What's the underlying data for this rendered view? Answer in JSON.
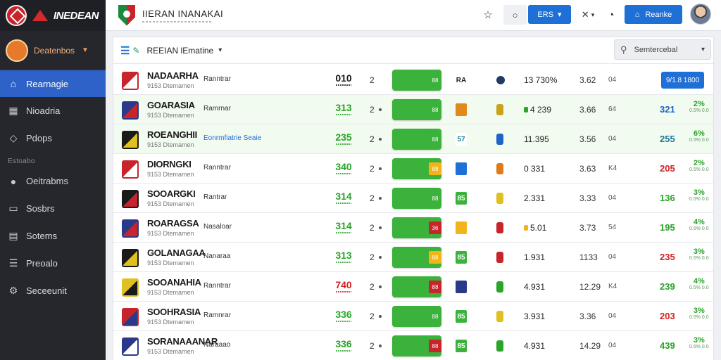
{
  "brand": {
    "name": "INEDEAN"
  },
  "sidebar": {
    "club_select": "Deatenbos",
    "items": [
      {
        "label": "Rearnagie",
        "icon": "home-icon",
        "active": true
      },
      {
        "label": "Nioadria",
        "icon": "building-icon",
        "active": false
      },
      {
        "label": "Pdops",
        "icon": "tag-icon",
        "active": false
      }
    ],
    "section_label": "Estoabo",
    "items2": [
      {
        "label": "Oeitrabms",
        "icon": "circle-icon"
      },
      {
        "label": "Sosbrs",
        "icon": "monitor-icon"
      },
      {
        "label": "Sotems",
        "icon": "calendar-icon"
      },
      {
        "label": "Preoalo",
        "icon": "list-icon"
      },
      {
        "label": "Seceeunit",
        "icon": "gear-icon"
      }
    ]
  },
  "header": {
    "title": "IIERAN INANAKAI",
    "lang_label": "ERS",
    "cta_label": "Reanke"
  },
  "panel": {
    "view_label": "REEIAN lEmatine",
    "filter_placeholder": "Semtercebal"
  },
  "colors": {
    "accent": "#1e6fd6",
    "bar": "#3bb23b",
    "sidebar": "#26272d",
    "active_nav": "#2f62c8"
  },
  "rows": [
    {
      "name": "NADAARHA",
      "sub": "9153 Dtemamen",
      "type": "Ranntrar",
      "type_link": false,
      "pts": "010",
      "pts_color": "dark",
      "rank": "2",
      "rank_dot": false,
      "bar_tag": "88",
      "bar_tag_color": "#3bb23b",
      "form": "RA",
      "form_color": "#ffffff",
      "form_text_color": "#222",
      "ind_color": "#223a66",
      "ind_round": true,
      "val1": "13 730%",
      "val1_dot": "",
      "val2": "3.62",
      "unit": "04",
      "score": "",
      "score_color": "",
      "pct": "",
      "pct_sub": "",
      "button": "9/1.8 1800",
      "crest": [
        "#c8242b",
        "#ffffff"
      ]
    },
    {
      "name": "GOARASIA",
      "sub": "9153 Dtemamen",
      "type": "Ramrnar",
      "type_link": false,
      "pts": "313",
      "pts_color": "green",
      "rank": "2",
      "rank_dot": true,
      "bar_tag": "88",
      "bar_tag_color": "#3bb23b",
      "form": "",
      "form_color": "#e08a1a",
      "form_text_color": "#fff",
      "ind_color": "#c9a21a",
      "ind_round": false,
      "val1": "4 239",
      "val1_dot": "#2aa52a",
      "val2": "3.66",
      "unit": "64",
      "score": "321",
      "score_color": "blue",
      "pct": "2%",
      "pct_sub": "0.5% 0.0",
      "button": "",
      "crest": [
        "#2a3a8a",
        "#c8242b"
      ]
    },
    {
      "name": "ROEANGHII",
      "sub": "9153 Dtemamen",
      "type": "Eonrmfiatrie Seaie",
      "type_link": true,
      "pts": "235",
      "pts_color": "green",
      "rank": "2",
      "rank_dot": true,
      "bar_tag": "88",
      "bar_tag_color": "#3bb23b",
      "form": "57",
      "form_color": "#ffffff",
      "form_text_color": "#1a7a9a",
      "ind_color": "#1e63c8",
      "ind_round": false,
      "val1": "11.395",
      "val1_dot": "",
      "val2": "3.56",
      "unit": "04",
      "score": "255",
      "score_color": "teal",
      "pct": "6%",
      "pct_sub": "0.5% 0.0",
      "button": "",
      "crest": [
        "#1a1a1a",
        "#e0c020"
      ]
    },
    {
      "name": "DIORNGKI",
      "sub": "9153 Dtemamen",
      "type": "Ranntrar",
      "type_link": false,
      "pts": "340",
      "pts_color": "green",
      "rank": "2",
      "rank_dot": true,
      "bar_tag": "88",
      "bar_tag_color": "#f2b418",
      "form": "",
      "form_color": "#1e6fd6",
      "form_text_color": "#fff",
      "ind_color": "#e07a1a",
      "ind_round": false,
      "val1": "0 331",
      "val1_dot": "",
      "val2": "3.63",
      "unit": "K4",
      "score": "205",
      "score_color": "red",
      "pct": "2%",
      "pct_sub": "0.5% 0.0",
      "button": "",
      "crest": [
        "#c8242b",
        "#ffffff"
      ]
    },
    {
      "name": "SOOARGKI",
      "sub": "9153 Dtemamen",
      "type": "Rantrar",
      "type_link": false,
      "pts": "314",
      "pts_color": "green",
      "rank": "2",
      "rank_dot": true,
      "bar_tag": "88",
      "bar_tag_color": "#3bb23b",
      "form": "85",
      "form_color": "#3bb23b",
      "form_text_color": "#fff",
      "ind_color": "#e0c020",
      "ind_round": false,
      "val1": "2.331",
      "val1_dot": "",
      "val2": "3.33",
      "unit": "04",
      "score": "136",
      "score_color": "green",
      "pct": "3%",
      "pct_sub": "0.5% 0.0",
      "button": "",
      "crest": [
        "#1a1a1a",
        "#c8242b"
      ]
    },
    {
      "name": "ROARAGSA",
      "sub": "9153 Dtemamen",
      "type": "Nasaloar",
      "type_link": false,
      "pts": "314",
      "pts_color": "green",
      "rank": "2",
      "rank_dot": true,
      "bar_tag": "36",
      "bar_tag_color": "#c8242b",
      "form": "",
      "form_color": "#f2b418",
      "form_text_color": "#fff",
      "ind_color": "#c8242b",
      "ind_round": false,
      "val1": "5.01",
      "val1_dot": "#f2b418",
      "val2": "3.73",
      "unit": "54",
      "score": "195",
      "score_color": "green",
      "pct": "4%",
      "pct_sub": "0.5% 0.0",
      "button": "",
      "crest": [
        "#2a3a8a",
        "#c8242b"
      ]
    },
    {
      "name": "GOLANAGAA",
      "sub": "9153 Dtemamen",
      "type": "Nanaraa",
      "type_link": false,
      "pts": "313",
      "pts_color": "green",
      "rank": "2",
      "rank_dot": true,
      "bar_tag": "88",
      "bar_tag_color": "#f2b418",
      "form": "85",
      "form_color": "#3bb23b",
      "form_text_color": "#fff",
      "ind_color": "#c8242b",
      "ind_round": false,
      "val1": "1.931",
      "val1_dot": "",
      "val2": "1133",
      "unit": "04",
      "score": "235",
      "score_color": "red",
      "pct": "3%",
      "pct_sub": "0.5% 0.0",
      "button": "",
      "crest": [
        "#1a1a1a",
        "#e0c020"
      ]
    },
    {
      "name": "SOOANAHIA",
      "sub": "9153 Dtemamen",
      "type": "Ranntrar",
      "type_link": false,
      "pts": "740",
      "pts_color": "red",
      "rank": "2",
      "rank_dot": true,
      "bar_tag": "88",
      "bar_tag_color": "#c8242b",
      "form": "",
      "form_color": "#2a3a8a",
      "form_text_color": "#fff",
      "ind_color": "#2aa52a",
      "ind_round": false,
      "val1": "4.931",
      "val1_dot": "",
      "val2": "12.29",
      "unit": "K4",
      "score": "239",
      "score_color": "green",
      "pct": "4%",
      "pct_sub": "0.5% 0.0",
      "button": "",
      "crest": [
        "#e0c020",
        "#1a1a1a"
      ]
    },
    {
      "name": "SOOHRASIA",
      "sub": "9153 Dtemamen",
      "type": "Ramnrar",
      "type_link": false,
      "pts": "336",
      "pts_color": "green",
      "rank": "2",
      "rank_dot": true,
      "bar_tag": "88",
      "bar_tag_color": "#3bb23b",
      "form": "85",
      "form_color": "#3bb23b",
      "form_text_color": "#fff",
      "ind_color": "#e0c020",
      "ind_round": false,
      "val1": "3.931",
      "val1_dot": "",
      "val2": "3.36",
      "unit": "04",
      "score": "203",
      "score_color": "red",
      "pct": "3%",
      "pct_sub": "0.5% 0.0",
      "button": "",
      "crest": [
        "#c8242b",
        "#2a3a8a"
      ]
    },
    {
      "name": "SORANAAANAR",
      "sub": "9153 Dtemamen",
      "type": "Naraaao",
      "type_link": false,
      "pts": "336",
      "pts_color": "green",
      "rank": "2",
      "rank_dot": true,
      "bar_tag": "88",
      "bar_tag_color": "#c8242b",
      "form": "85",
      "form_color": "#3bb23b",
      "form_text_color": "#fff",
      "ind_color": "#2aa52a",
      "ind_round": false,
      "val1": "4.931",
      "val1_dot": "",
      "val2": "14.29",
      "unit": "04",
      "score": "439",
      "score_color": "green",
      "pct": "3%",
      "pct_sub": "0.5% 0.0",
      "button": "",
      "crest": [
        "#2a3a8a",
        "#ffffff"
      ]
    }
  ]
}
